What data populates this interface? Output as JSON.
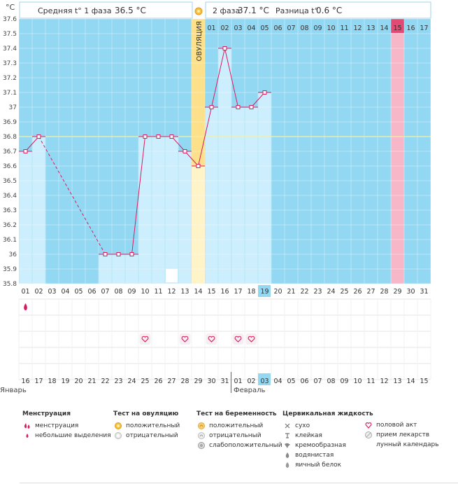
{
  "units_label": "°C",
  "header": {
    "phase1_label": "Средняя t° 1 фаза",
    "phase1_value": "36.5 °C",
    "phase2_label": "2 фаза",
    "phase2_value": "37.1 °C",
    "diff_label": "Разница t°",
    "diff_value": "0.6 °C",
    "ovulation_label": "ОВУЛЯЦИЯ"
  },
  "colors": {
    "phase_bg": "#93d8f3",
    "bar": "#cdeefc",
    "ovulation": "#fce08a",
    "ovulation_light": "#fff3c8",
    "highlight_pink": "#f8b7c9",
    "line": "#d81b60",
    "coverline": "#f5f0a0"
  },
  "chart_data": {
    "type": "line",
    "title": "",
    "ylabel": "°C",
    "ylim": [
      35.8,
      37.6
    ],
    "yticks": [
      "37.6",
      "37.5",
      "37.4",
      "37.3",
      "37.2",
      "37.1",
      "37",
      "36.9",
      "36.8",
      "36.7",
      "36.6",
      "36.5",
      "36.4",
      "36.3",
      "36.2",
      "36.1",
      "36",
      "35.9",
      "35.8"
    ],
    "cycle_days": [
      "01",
      "02",
      "03",
      "04",
      "05",
      "06",
      "07",
      "08",
      "09",
      "10",
      "11",
      "12",
      "13",
      "14",
      "15",
      "16",
      "17",
      "18",
      "19",
      "20",
      "21",
      "22",
      "23",
      "24",
      "25",
      "26",
      "27",
      "28",
      "29",
      "30",
      "31"
    ],
    "current_day_index": 18,
    "ovulation_day_index": 13,
    "highlight_day_index": 28,
    "phase2_dpo_labels": [
      "01",
      "02",
      "03",
      "04",
      "05",
      "06",
      "07",
      "08",
      "09",
      "10",
      "11",
      "12",
      "13",
      "14",
      "15",
      "16",
      "17"
    ],
    "coverline": 36.8,
    "temperatures": [
      36.7,
      36.8,
      null,
      null,
      null,
      null,
      36.0,
      36.0,
      36.0,
      36.8,
      36.8,
      36.8,
      36.7,
      36.6,
      37.0,
      37.4,
      37.0,
      37.0,
      37.1,
      null,
      null,
      null,
      null,
      null,
      null,
      null,
      null,
      null,
      null,
      null,
      null
    ],
    "dashed_segment": [
      1,
      6
    ],
    "calendar_dates": [
      "16",
      "17",
      "18",
      "19",
      "20",
      "21",
      "22",
      "23",
      "24",
      "25",
      "26",
      "27",
      "28",
      "29",
      "30",
      "31",
      "01",
      "02",
      "03",
      "04",
      "05",
      "06",
      "07",
      "08",
      "09",
      "10",
      "11",
      "12",
      "13",
      "14",
      "15"
    ],
    "calendar_red_indices": [
      2,
      3,
      9,
      10,
      16,
      17,
      23,
      24,
      30
    ],
    "current_date_index": 18,
    "month_start_label": "Январь",
    "month_next_label": "Февраль",
    "month_next_index": 16,
    "menstruation_days": [
      0
    ],
    "intercourse_days": [
      9,
      12,
      14,
      16,
      17
    ],
    "moon_day": 11
  },
  "legend": {
    "menstruation": {
      "title": "Менструация",
      "items": [
        "менструация",
        "небольшие выделения"
      ]
    },
    "ovulation_test": {
      "title": "Тест на овуляцию",
      "items": [
        "положительный",
        "отрицательный"
      ]
    },
    "pregnancy_test": {
      "title": "Тест на беременность",
      "items": [
        "положительный",
        "отрицательный",
        "слабоположительный"
      ]
    },
    "cervical": {
      "title": "Цервикальная жидкость",
      "items": [
        "сухо",
        "клейкая",
        "кремообразная",
        "водянистая",
        "яичный белок"
      ]
    },
    "other": {
      "items": [
        "половой акт",
        "прием лекарств",
        "лунный календарь"
      ]
    }
  }
}
